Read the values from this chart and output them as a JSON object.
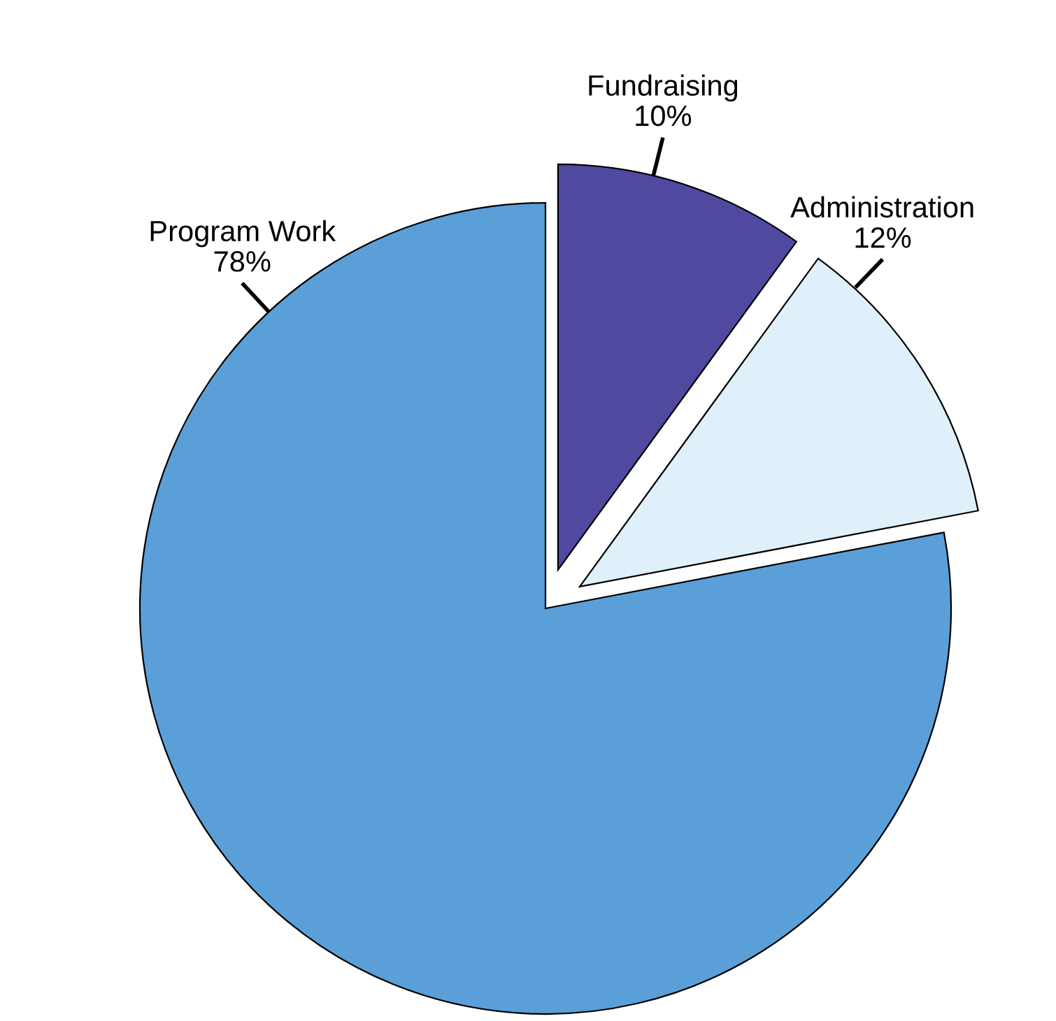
{
  "chart_data": {
    "type": "pie",
    "categories": [
      "Fundraising",
      "Administration",
      "Program Work"
    ],
    "values": [
      10,
      12,
      78
    ],
    "colors": [
      "#5049a0",
      "#dff0fb",
      "#5a9fd8"
    ],
    "value_labels": [
      "10%",
      "12%",
      "78%"
    ]
  }
}
